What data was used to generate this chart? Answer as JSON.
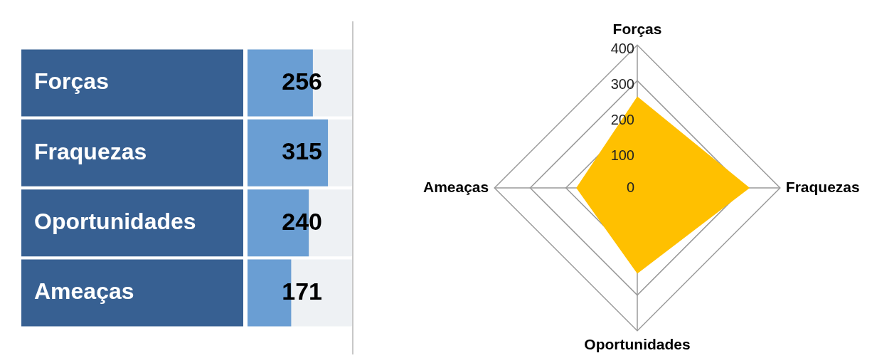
{
  "chart_data": [
    {
      "type": "bar",
      "orientation": "horizontal",
      "categories": [
        "Forças",
        "Fraquezas",
        "Oportunidades",
        "Ameaças"
      ],
      "values": [
        256,
        315,
        240,
        171
      ],
      "color": "#6a9ed3",
      "data_labels": true
    },
    {
      "type": "radar",
      "categories": [
        "Forças",
        "Fraquezas",
        "Oportunidades",
        "Ameaças"
      ],
      "series": [
        {
          "color": "#ffc000",
          "values": [
            256,
            315,
            240,
            171
          ]
        }
      ],
      "ylim": [
        0,
        400
      ],
      "yticks": [
        0,
        100,
        200,
        300,
        400
      ],
      "grid": true,
      "marker": "none"
    }
  ]
}
